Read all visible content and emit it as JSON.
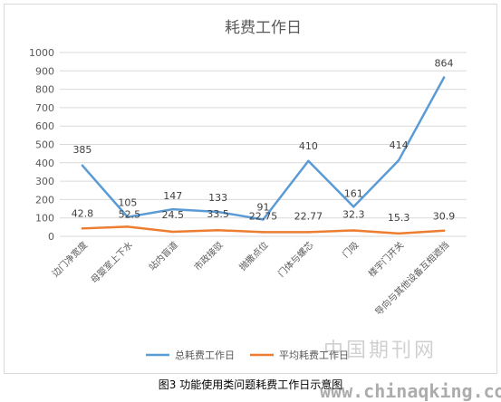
{
  "caption": "图3 功能使用类问题耗费工作日示意图",
  "watermark": {
    "cn": "中国期刊网",
    "en": "www.chinaqking.com"
  },
  "colors": {
    "series_total": "#5b9bd5",
    "series_avg": "#ed7d31",
    "grid": "#d9d9d9",
    "text": "#595959"
  },
  "chart_data": {
    "type": "line",
    "title": "耗费工作日",
    "xlabel": "",
    "ylabel": "",
    "ylim": [
      0,
      1000
    ],
    "yticks": [
      0,
      100,
      200,
      300,
      400,
      500,
      600,
      700,
      800,
      900,
      1000
    ],
    "grid": true,
    "legend": "bottom",
    "categories": [
      "边门净宽度",
      "母婴室上下水",
      "站内盲道",
      "市政接驳",
      "抛撒点位",
      "门体与螺芯",
      "门吸",
      "楼宇门开关",
      "导向与其他设备互相遮挡"
    ],
    "series": [
      {
        "name": "总耗费工作日",
        "values": [
          385,
          105,
          147,
          133,
          91,
          410,
          161,
          414,
          864
        ],
        "labels": [
          "385",
          "105",
          "147",
          "133",
          "91",
          "410",
          "161",
          "414",
          "864"
        ]
      },
      {
        "name": "平均耗费工作日",
        "values": [
          42.8,
          52.5,
          24.5,
          33.5,
          22.75,
          22.77,
          32.3,
          15.3,
          30.9
        ],
        "labels": [
          "42.8",
          "52.5",
          "24.5",
          "33.5",
          "22.75",
          "22.77",
          "32.3",
          "15.3",
          "30.9"
        ]
      }
    ]
  }
}
